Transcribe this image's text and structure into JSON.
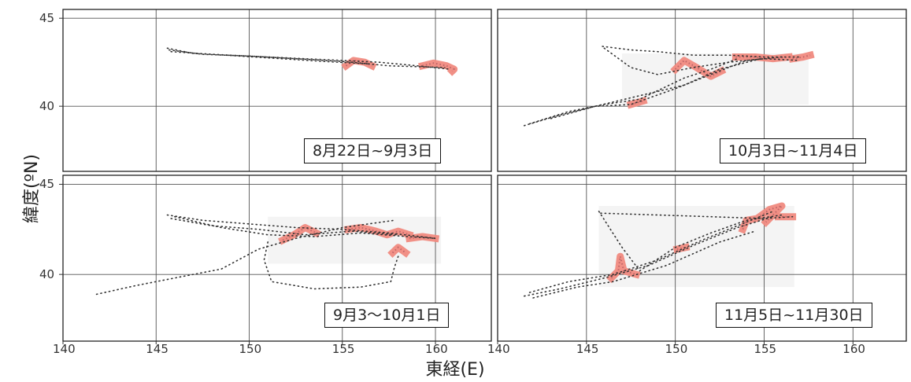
{
  "axis_labels": {
    "y": "緯度(ºN)",
    "x": "東経(E)"
  },
  "colors": {
    "track": "#333333",
    "highlight_fill": "#f08a80",
    "highlight_dark": "#b05a60",
    "region_bg": "#f4f4f4",
    "grid": "#555555"
  },
  "chart_data": {
    "type": "scatter",
    "xlim": [
      140,
      163
    ],
    "ylim": [
      36.3,
      45.5
    ],
    "xticks": [
      "140",
      "145",
      "150",
      "155",
      "160"
    ],
    "yticks": [
      "40",
      "45"
    ],
    "panels": [
      {
        "period": "8月22日~9月3日",
        "xticks_shown": false,
        "region": null,
        "tracks": [
          [
            [
              145.6,
              43.3
            ],
            [
              147,
              43.0
            ],
            [
              149,
              42.9
            ],
            [
              151,
              42.8
            ],
            [
              153,
              42.7
            ],
            [
              155,
              42.6
            ],
            [
              157,
              42.5
            ],
            [
              159,
              42.3
            ],
            [
              160.8,
              42.1
            ]
          ],
          [
            [
              145.7,
              43.2
            ],
            [
              147.5,
              42.95
            ],
            [
              150,
              42.85
            ],
            [
              152.5,
              42.7
            ],
            [
              155,
              42.55
            ],
            [
              157.5,
              42.3
            ],
            [
              160.5,
              42.2
            ]
          ],
          [
            [
              145.8,
              43.1
            ],
            [
              148,
              42.95
            ],
            [
              151,
              42.75
            ],
            [
              154,
              42.55
            ],
            [
              156.5,
              42.4
            ]
          ]
        ],
        "highlights": [
          [
            [
              155.2,
              42.3
            ],
            [
              155.6,
              42.6
            ],
            [
              156.2,
              42.5
            ],
            [
              156.6,
              42.3
            ]
          ],
          [
            [
              159.3,
              42.3
            ],
            [
              159.9,
              42.45
            ],
            [
              160.6,
              42.3
            ],
            [
              161.0,
              42.1
            ],
            [
              160.9,
              42.0
            ]
          ]
        ]
      },
      {
        "period": "10月3日~11月4日",
        "xticks_shown": false,
        "region": {
          "x": [
            147,
            157.5
          ],
          "y": [
            40.1,
            43.0
          ]
        },
        "tracks": [
          [
            [
              145.9,
              43.4
            ],
            [
              147.5,
              43.2
            ],
            [
              149,
              43.1
            ],
            [
              151,
              42.9
            ],
            [
              153,
              42.9
            ],
            [
              155,
              42.8
            ],
            [
              157,
              42.8
            ]
          ],
          [
            [
              141.5,
              38.9
            ],
            [
              143.5,
              39.5
            ],
            [
              145.5,
              40.0
            ],
            [
              147.5,
              40.1
            ],
            [
              150,
              41.0
            ],
            [
              152,
              41.8
            ],
            [
              154,
              42.6
            ],
            [
              156,
              42.8
            ]
          ],
          [
            [
              141.8,
              39.0
            ],
            [
              144,
              39.7
            ],
            [
              146,
              40.1
            ],
            [
              148,
              40.4
            ],
            [
              150.5,
              41.6
            ],
            [
              152,
              42.1
            ],
            [
              153.5,
              42.7
            ]
          ],
          [
            [
              146,
              43.3
            ],
            [
              147.5,
              42.2
            ],
            [
              149,
              41.8
            ],
            [
              151,
              42.2
            ],
            [
              153,
              42.5
            ],
            [
              155,
              42.7
            ],
            [
              157,
              42.6
            ]
          ],
          [
            [
              143,
              39.3
            ],
            [
              145.5,
              40.0
            ],
            [
              148,
              40.6
            ],
            [
              150.5,
              41.2
            ],
            [
              152.5,
              42.1
            ],
            [
              154.8,
              42.7
            ]
          ]
        ],
        "highlights": [
          [
            [
              150,
              42.1
            ],
            [
              150.5,
              42.6
            ],
            [
              151.2,
              42.2
            ],
            [
              152,
              41.7
            ],
            [
              152.6,
              42.0
            ]
          ],
          [
            [
              153.4,
              42.8
            ],
            [
              154.5,
              42.8
            ],
            [
              155.5,
              42.7
            ],
            [
              156.4,
              42.8
            ]
          ],
          [
            [
              156.6,
              42.7
            ],
            [
              157.2,
              42.8
            ],
            [
              157.6,
              42.9
            ]
          ],
          [
            [
              147.5,
              40.1
            ],
            [
              148.2,
              40.3
            ]
          ]
        ]
      },
      {
        "period": "9月3～10月1日",
        "xticks_shown": true,
        "region": {
          "x": [
            151,
            160.3
          ],
          "y": [
            40.6,
            43.2
          ]
        },
        "tracks": [
          [
            [
              145.6,
              43.3
            ],
            [
              147.5,
              43.0
            ],
            [
              150,
              42.8
            ],
            [
              152.5,
              42.6
            ],
            [
              155,
              42.5
            ],
            [
              157.5,
              42.3
            ],
            [
              160,
              42.0
            ]
          ],
          [
            [
              145.8,
              43.1
            ],
            [
              148,
              42.7
            ],
            [
              150.5,
              42.5
            ],
            [
              153,
              42.2
            ],
            [
              155.5,
              42.4
            ],
            [
              158,
              42.2
            ]
          ],
          [
            [
              141.8,
              38.9
            ],
            [
              144,
              39.4
            ],
            [
              146.5,
              39.9
            ],
            [
              148.5,
              40.3
            ],
            [
              150.5,
              41.4
            ],
            [
              152.5,
              42.0
            ],
            [
              155,
              42.6
            ],
            [
              157.8,
              43.0
            ]
          ],
          [
            [
              151.0,
              41.8
            ],
            [
              150.8,
              40.8
            ],
            [
              151.2,
              39.6
            ],
            [
              153.5,
              39.2
            ],
            [
              156,
              39.3
            ],
            [
              157.6,
              39.6
            ],
            [
              157.8,
              40.4
            ],
            [
              158.0,
              41.0
            ]
          ],
          [
            [
              146,
              43.2
            ],
            [
              148.5,
              42.6
            ],
            [
              151,
              42.2
            ],
            [
              153.5,
              42.1
            ],
            [
              156,
              42.3
            ],
            [
              158.5,
              42.1
            ],
            [
              160,
              42.0
            ]
          ]
        ],
        "highlights": [
          [
            [
              151.8,
              41.9
            ],
            [
              152.4,
              42.2
            ],
            [
              153.0,
              42.6
            ],
            [
              153.6,
              42.3
            ]
          ],
          [
            [
              155.3,
              42.5
            ],
            [
              156.0,
              42.6
            ],
            [
              156.8,
              42.4
            ],
            [
              157.4,
              42.2
            ],
            [
              158.0,
              42.4
            ],
            [
              158.6,
              42.2
            ]
          ],
          [
            [
              157.7,
              41.2
            ],
            [
              158.0,
              41.5
            ],
            [
              158.4,
              41.2
            ]
          ],
          [
            [
              158.6,
              42.0
            ],
            [
              159.3,
              42.1
            ],
            [
              160.0,
              42.0
            ]
          ]
        ]
      },
      {
        "period": "11月5日~11月30日",
        "xticks_shown": true,
        "region": {
          "x": [
            145.7,
            156.7
          ],
          "y": [
            39.3,
            43.8
          ]
        },
        "tracks": [
          [
            [
              145.7,
              43.5
            ],
            [
              147,
              41.5
            ],
            [
              148,
              40.2
            ],
            [
              150,
              41.5
            ],
            [
              152,
              42.3
            ],
            [
              154,
              43.0
            ],
            [
              156,
              43.3
            ]
          ],
          [
            [
              141.5,
              38.8
            ],
            [
              143.5,
              39.2
            ],
            [
              146,
              39.8
            ],
            [
              148.5,
              40.5
            ],
            [
              151,
              41.6
            ],
            [
              153.5,
              42.6
            ],
            [
              155.5,
              43.2
            ]
          ],
          [
            [
              141.8,
              39.0
            ],
            [
              144,
              39.6
            ],
            [
              146.5,
              40.0
            ],
            [
              149,
              40.8
            ],
            [
              151.5,
              41.9
            ],
            [
              154,
              42.9
            ],
            [
              155.5,
              43.5
            ]
          ],
          [
            [
              145.8,
              43.4
            ],
            [
              149,
              43.3
            ],
            [
              152,
              43.2
            ],
            [
              155,
              43.1
            ],
            [
              156.6,
              43.2
            ]
          ],
          [
            [
              142,
              38.7
            ],
            [
              144.5,
              39.3
            ],
            [
              146.5,
              39.6
            ],
            [
              149.5,
              40.5
            ],
            [
              152.5,
              41.8
            ],
            [
              154.5,
              42.4
            ]
          ]
        ],
        "highlights": [
          [
            [
              146.4,
              39.8
            ],
            [
              146.8,
              40.2
            ],
            [
              146.9,
              41.0
            ],
            [
              147.1,
              40.2
            ],
            [
              147.8,
              40.0
            ]
          ],
          [
            [
              150.1,
              41.4
            ],
            [
              150.6,
              41.5
            ]
          ],
          [
            [
              153.8,
              42.5
            ],
            [
              154.0,
              43.0
            ],
            [
              154.6,
              43.1
            ],
            [
              155.3,
              43.6
            ],
            [
              156.0,
              43.8
            ],
            [
              155.1,
              42.9
            ]
          ],
          [
            [
              155.8,
              43.2
            ],
            [
              156.6,
              43.2
            ]
          ]
        ]
      }
    ]
  }
}
